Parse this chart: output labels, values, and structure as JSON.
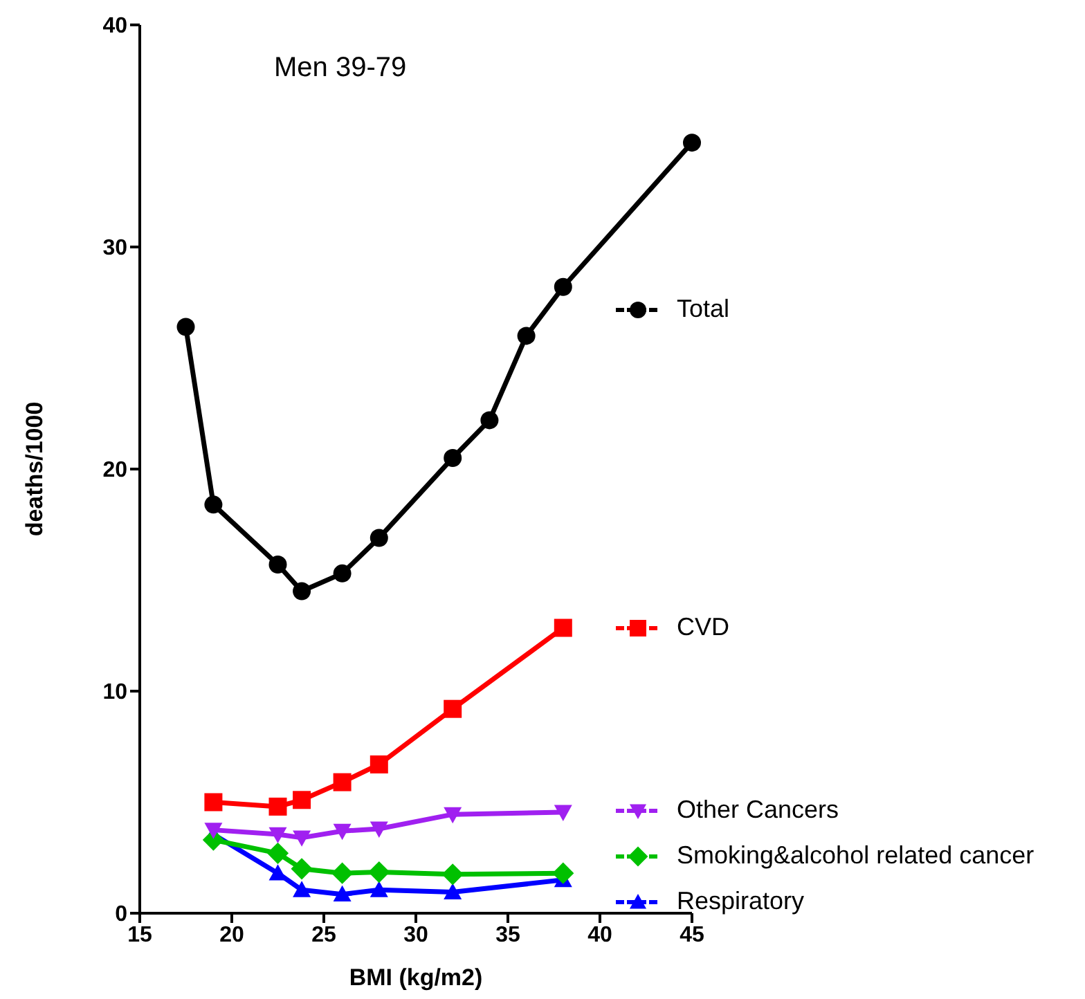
{
  "chart_data": {
    "type": "line",
    "title": "Men 39-79",
    "xlabel": "BMI (kg/m2)",
    "ylabel": "deaths/1000",
    "xlim": [
      15,
      45
    ],
    "xticks": [
      15,
      20,
      25,
      30,
      35,
      40,
      45
    ],
    "ylim": [
      0,
      40
    ],
    "yticks": [
      0,
      10,
      20,
      30,
      40
    ],
    "grid": false,
    "legend": "right",
    "series": [
      {
        "name": "Total",
        "color": "#000000",
        "marker": "circle",
        "x": [
          17.5,
          19,
          22.5,
          23.8,
          26,
          28,
          32,
          34,
          36,
          38,
          45
        ],
        "values": [
          26.4,
          18.4,
          15.7,
          14.5,
          15.3,
          16.9,
          20.5,
          22.2,
          26.0,
          28.2,
          34.7
        ]
      },
      {
        "name": "CVD",
        "color": "#ff0000",
        "marker": "square",
        "x": [
          19,
          22.5,
          23.8,
          26,
          28,
          32,
          38
        ],
        "values": [
          5.0,
          4.8,
          5.1,
          5.9,
          6.7,
          9.2,
          12.85
        ]
      },
      {
        "name": "Other Cancers",
        "color": "#a020f0",
        "marker": "triangle-down",
        "x": [
          19,
          22.5,
          23.8,
          26,
          28,
          32,
          38
        ],
        "values": [
          3.75,
          3.55,
          3.4,
          3.7,
          3.8,
          4.45,
          4.55
        ]
      },
      {
        "name": "Smoking&alcohol related cancer",
        "color": "#00c000",
        "marker": "diamond",
        "x": [
          19,
          22.5,
          23.8,
          26,
          28,
          32,
          38
        ],
        "values": [
          3.3,
          2.7,
          2.0,
          1.8,
          1.85,
          1.75,
          1.8
        ]
      },
      {
        "name": "Respiratory",
        "color": "#0000ff",
        "marker": "triangle",
        "x": [
          19,
          22.5,
          23.8,
          26,
          28,
          32,
          38
        ],
        "values": [
          3.55,
          1.8,
          1.05,
          0.85,
          1.05,
          0.95,
          1.5
        ]
      }
    ]
  }
}
